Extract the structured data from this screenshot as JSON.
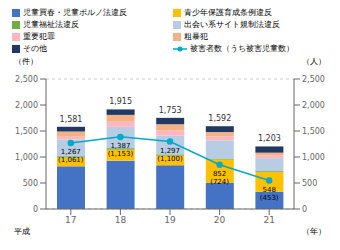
{
  "chart_data": {
    "type": "bar",
    "stacked": true,
    "categories": [
      "17",
      "18",
      "19",
      "20",
      "21"
    ],
    "series": [
      {
        "name": "児童買春・児童ポルノ法違反",
        "color": "#4472C4",
        "values": [
          820,
          930,
          840,
          500,
          330
        ]
      },
      {
        "name": "青少年保護育成条例違反",
        "color": "#FFC000",
        "values": [
          170,
          210,
          185,
          450,
          380
        ]
      },
      {
        "name": "児童福祉法違反",
        "color": "#70AD47",
        "values": [
          25,
          30,
          25,
          20,
          18
        ]
      },
      {
        "name": "出会い系サイト規制法違反",
        "color": "#B8CCE4",
        "values": [
          320,
          410,
          360,
          350,
          250
        ]
      },
      {
        "name": "重要犯罪",
        "color": "#FFB6C1",
        "values": [
          55,
          100,
          100,
          75,
          50
        ]
      },
      {
        "name": "粗暴犯",
        "color": "#F4B183",
        "values": [
          100,
          130,
          120,
          85,
          55
        ]
      },
      {
        "name": "その他",
        "color": "#1F3864",
        "values": [
          91,
          105,
          123,
          112,
          120
        ]
      },
      {
        "name": "被害者数（うち被害児童数）",
        "type": "line",
        "axis": "y2",
        "color": "#00AACC",
        "marker": "circle",
        "values": [
          1267,
          1387,
          1297,
          852,
          548
        ],
        "value_labels": [
          "1,267\n(1,061)",
          "1,387\n(1,153)",
          "1,297\n(1,100)",
          "852\n(724)",
          "548\n(453)"
        ]
      }
    ],
    "totals": [
      1581,
      1915,
      1753,
      1592,
      1203
    ],
    "total_labels": [
      "1,581",
      "1,915",
      "1,753",
      "1,592",
      "1,203"
    ],
    "ylabel": "（件）",
    "y2label": "（人）",
    "xlabel_left": "平成",
    "xlabel_right": "（年）",
    "ylim": [
      0,
      2500
    ],
    "yticks": [
      0,
      500,
      {
        "value": 1000,
        "label": "1,000"
      },
      {
        "value": 1500,
        "label": "1,500"
      },
      {
        "value": 2000,
        "label": "2,000"
      },
      {
        "value": 2500,
        "label": "2,500"
      }
    ],
    "y2lim": [
      0,
      2500
    ],
    "y2ticks": [
      0,
      500,
      {
        "value": 1000,
        "label": "1,000"
      },
      {
        "value": 1500,
        "label": "1,500"
      },
      {
        "value": 2000,
        "label": "2,000"
      },
      {
        "value": 2500,
        "label": "2,500"
      }
    ],
    "grid": true,
    "legend": "top"
  }
}
